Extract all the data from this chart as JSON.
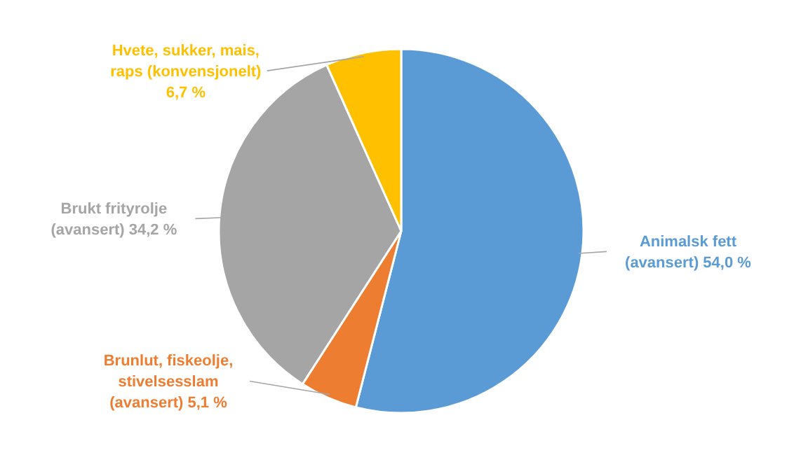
{
  "chart_data": {
    "type": "pie",
    "categories": [
      "Animalsk fett (avansert)",
      "Brunlut, fiskeolje, stivelsesslam (avansert)",
      "Brukt frityrolje (avansert)",
      "Hvete, sukker, mais, raps (konvensjonelt)"
    ],
    "values": [
      54.0,
      5.1,
      34.2,
      6.7
    ],
    "value_labels": [
      "54,0 %",
      "5,1 %",
      "34,2 %",
      "6,7 %"
    ],
    "colors": [
      "#5b9bd5",
      "#ed7d31",
      "#a5a5a5",
      "#ffc000"
    ],
    "legend": false
  }
}
